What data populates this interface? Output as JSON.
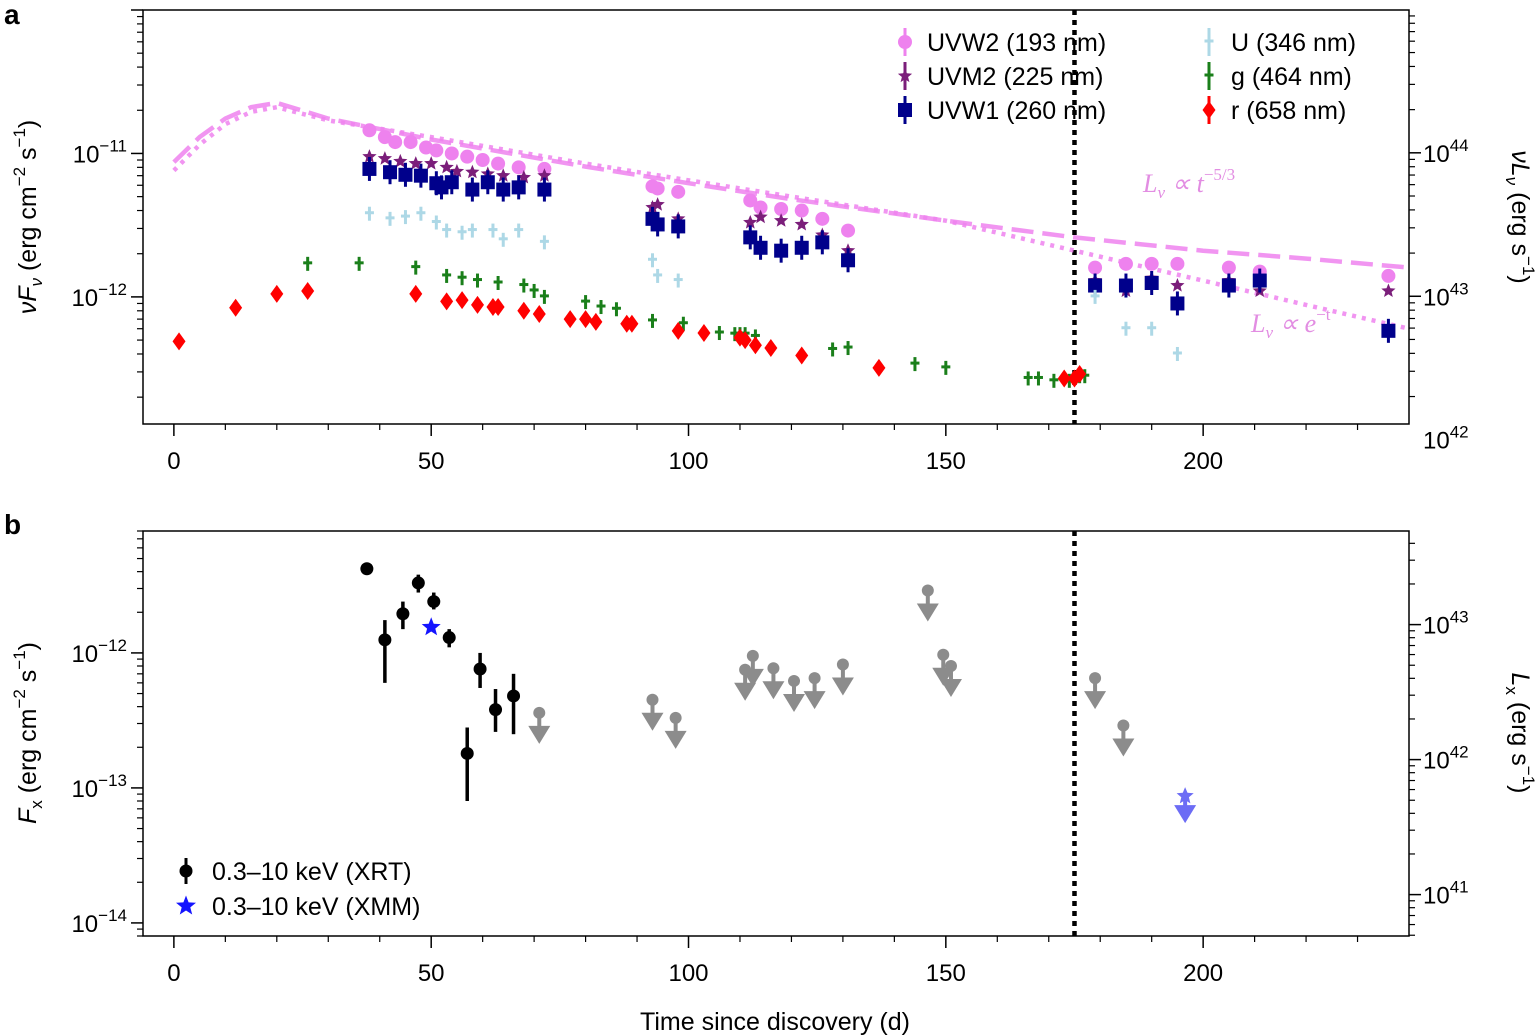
{
  "chart_data": [
    {
      "panel": "a",
      "type": "scatter",
      "xlim": [
        -6,
        240
      ],
      "ylim_left": [
        1.3e-13,
        1e-10
      ],
      "left_axis_label": "νF_ν (erg cm^−2 s^−1)",
      "right_axis_label": "νL_ν (erg s^−1)",
      "left_yticks": [
        {
          "value": 1e-11,
          "base": "10",
          "exp": "−11"
        },
        {
          "value": 1e-12,
          "base": "10",
          "exp": "−12"
        }
      ],
      "right_yticks": [
        {
          "value": 1e+44,
          "base": "10",
          "exp": "44"
        },
        {
          "value": 1e+43,
          "base": "10",
          "exp": "43"
        },
        {
          "value": 1e+42,
          "base": "10",
          "exp": "42"
        }
      ],
      "right_axis_scale_factor": 9.9e+54,
      "xticks": [
        0,
        50,
        100,
        150,
        200
      ],
      "discovery_line_x": 175,
      "series": [
        {
          "name": "UVW2 (193 nm)",
          "color": "#ee82ee",
          "marker": "circle",
          "x": [
            38,
            41,
            43,
            46,
            49,
            51,
            54,
            57,
            60,
            63,
            67,
            72,
            93,
            94,
            98,
            112,
            114,
            118,
            122,
            126,
            131,
            179,
            185,
            190,
            195,
            205,
            211,
            236
          ],
          "y": [
            1.45e-11,
            1.3e-11,
            1.2e-11,
            1.2e-11,
            1.1e-11,
            1.05e-11,
            1e-11,
            9.5e-12,
            9e-12,
            8.5e-12,
            8e-12,
            7.8e-12,
            5.9e-12,
            5.7e-12,
            5.4e-12,
            4.7e-12,
            4.2e-12,
            4.1e-12,
            4e-12,
            3.5e-12,
            2.9e-12,
            1.6e-12,
            1.7e-12,
            1.7e-12,
            1.7e-12,
            1.6e-12,
            1.5e-12,
            1.4e-12
          ]
        },
        {
          "name": "UVM2 (225 nm)",
          "color": "#7b1e7a",
          "marker": "star",
          "x": [
            38,
            41,
            44,
            47,
            50,
            53,
            55,
            58,
            61,
            64,
            68,
            72,
            93,
            94,
            98,
            112,
            114,
            118,
            122,
            126,
            131,
            179,
            185,
            190,
            195,
            205,
            211,
            236
          ],
          "y": [
            9.5e-12,
            9.2e-12,
            8.8e-12,
            8.5e-12,
            8.5e-12,
            8e-12,
            7.5e-12,
            7.4e-12,
            7.2e-12,
            7e-12,
            6.8e-12,
            7e-12,
            4.2e-12,
            4.4e-12,
            3.5e-12,
            3.3e-12,
            3.6e-12,
            3.4e-12,
            3.2e-12,
            2.7e-12,
            2.1e-12,
            1.3e-12,
            1.1e-12,
            1.35e-12,
            1.2e-12,
            1.3e-12,
            1.1e-12,
            1.1e-12
          ]
        },
        {
          "name": "UVW1 (260 nm)",
          "color": "#00008b",
          "marker": "square",
          "x": [
            38,
            42,
            45,
            48,
            51,
            52,
            54,
            58,
            61,
            64,
            67,
            72,
            93,
            94,
            98,
            112,
            114,
            118,
            122,
            126,
            131,
            179,
            185,
            190,
            195,
            205,
            211,
            236
          ],
          "y": [
            7.8e-12,
            7.4e-12,
            7.1e-12,
            7e-12,
            6.2e-12,
            5.8e-12,
            6.3e-12,
            5.6e-12,
            6.3e-12,
            5.6e-12,
            5.8e-12,
            5.6e-12,
            3.5e-12,
            3.2e-12,
            3.1e-12,
            2.6e-12,
            2.2e-12,
            2.1e-12,
            2.2e-12,
            2.4e-12,
            1.8e-12,
            1.2e-12,
            1.2e-12,
            1.25e-12,
            9e-13,
            1.2e-12,
            1.3e-12,
            5.8e-13
          ]
        },
        {
          "name": "U (346 nm)",
          "color": "#add8e6",
          "marker": "tick",
          "x": [
            38,
            42,
            45,
            48,
            51,
            53,
            56,
            58,
            62,
            64,
            67,
            72,
            93,
            94,
            98,
            179,
            185,
            190,
            195
          ],
          "y": [
            3.8e-12,
            3.5e-12,
            3.6e-12,
            3.8e-12,
            3.3e-12,
            2.9e-12,
            2.8e-12,
            2.9e-12,
            2.9e-12,
            2.5e-12,
            2.9e-12,
            2.4e-12,
            1.8e-12,
            1.4e-12,
            1.3e-12,
            1e-12,
            6e-13,
            6e-13,
            4e-13
          ]
        },
        {
          "name": "g (464 nm)",
          "color": "#1a7f1a",
          "marker": "tick",
          "x": [
            26,
            36,
            47,
            53,
            56,
            59,
            63,
            68,
            70,
            72,
            80,
            83,
            86,
            93,
            99,
            106,
            109,
            110,
            111,
            113,
            128,
            131,
            144,
            150,
            166,
            168,
            171,
            174,
            175,
            176,
            177
          ],
          "y": [
            1.7e-12,
            1.7e-12,
            1.6e-12,
            1.4e-12,
            1.35e-12,
            1.3e-12,
            1.25e-12,
            1.2e-12,
            1.1e-12,
            1e-12,
            9.2e-13,
            8.5e-13,
            8.2e-13,
            6.8e-13,
            6.5e-13,
            5.6e-13,
            5.5e-13,
            5.5e-13,
            5.5e-13,
            5.3e-13,
            4.3e-13,
            4.4e-13,
            3.4e-13,
            3.2e-13,
            2.7e-13,
            2.7e-13,
            2.6e-13,
            2.6e-13,
            2.7e-13,
            2.8e-13,
            2.8e-13
          ]
        },
        {
          "name": "r (658 nm)",
          "color": "#ff0000",
          "marker": "diamond",
          "x": [
            1,
            12,
            20,
            26,
            47,
            53,
            56,
            59,
            62,
            63,
            68,
            71,
            77,
            80,
            82,
            88,
            89,
            98,
            103,
            110,
            111,
            113,
            116,
            122,
            137,
            173,
            175,
            176
          ],
          "y": [
            4.9e-13,
            8.4e-13,
            1.05e-12,
            1.1e-12,
            1.05e-12,
            9.3e-13,
            9.5e-13,
            8.8e-13,
            8.5e-13,
            8.5e-13,
            8e-13,
            7.6e-13,
            7e-13,
            7e-13,
            6.7e-13,
            6.5e-13,
            6.5e-13,
            5.8e-13,
            5.6e-13,
            5.2e-13,
            5e-13,
            4.6e-13,
            4.4e-13,
            3.9e-13,
            3.2e-13,
            2.7e-13,
            2.7e-13,
            2.9e-13
          ]
        }
      ],
      "model_curves": [
        {
          "label_prefix": "L",
          "label_sub": "ν",
          "label_rel": " ∝ t",
          "label_sup": "−5/3",
          "style": "dashed",
          "color": "#ee82ee",
          "x": [
            0,
            5,
            10,
            15,
            20,
            30,
            50,
            80,
            100,
            120,
            150,
            175,
            200,
            220,
            240
          ],
          "y": [
            8.7e-12,
            1.3e-11,
            1.75e-11,
            2.1e-11,
            2.25e-11,
            1.75e-11,
            1.25e-11,
            8.1e-12,
            6.2e-12,
            4.8e-12,
            3.4e-12,
            2.6e-12,
            2.1e-12,
            1.85e-12,
            1.6e-12
          ]
        },
        {
          "label_prefix": "L",
          "label_sub": "ν",
          "label_rel": " ∝ e",
          "label_sup": "−t",
          "style": "dotted",
          "color": "#ee82ee",
          "x": [
            0,
            5,
            10,
            15,
            20,
            30,
            50,
            80,
            100,
            120,
            150,
            175,
            200,
            220,
            240
          ],
          "y": [
            7.6e-12,
            1.15e-11,
            1.6e-11,
            1.95e-11,
            2.1e-11,
            1.7e-11,
            1.3e-11,
            8.5e-12,
            6.5e-12,
            5e-12,
            3.4e-12,
            2.1e-12,
            1.3e-12,
            8.8e-13,
            6e-13
          ]
        }
      ]
    },
    {
      "panel": "b",
      "type": "scatter",
      "xlim": [
        -6,
        240
      ],
      "ylim_left": [
        8e-15,
        8e-12
      ],
      "left_axis_label": "F_x (erg cm^−2 s^−1)",
      "right_axis_label": "L_x (erg s^−1)",
      "xlabel": "Time since discovery (d)",
      "left_yticks": [
        {
          "value": 1e-12,
          "base": "10",
          "exp": "−12"
        },
        {
          "value": 1e-13,
          "base": "10",
          "exp": "−13"
        },
        {
          "value": 1e-14,
          "base": "10",
          "exp": "−14"
        }
      ],
      "right_yticks": [
        {
          "value": 1e+43,
          "base": "10",
          "exp": "43"
        },
        {
          "value": 1e+42,
          "base": "10",
          "exp": "42"
        },
        {
          "value": 1e+41,
          "base": "10",
          "exp": "41"
        }
      ],
      "right_axis_scale_factor": 6.17e+54,
      "xticks": [
        0,
        50,
        100,
        150,
        200
      ],
      "discovery_line_x": 175,
      "series": [
        {
          "name": "0.3–10 keV (XRT)",
          "color": "#000000",
          "marker": "circle",
          "x": [
            37.5,
            41,
            44.5,
            47.5,
            50.5,
            53.5,
            57,
            59.5,
            62.5,
            66
          ],
          "y": [
            4.2e-12,
            1.25e-12,
            1.95e-12,
            3.3e-12,
            2.4e-12,
            1.3e-12,
            1.8e-13,
            7.6e-13,
            3.8e-13,
            4.8e-13
          ],
          "err_lo": [
            4.2e-12,
            6e-13,
            1.5e-12,
            2.8e-12,
            2.1e-12,
            1.1e-12,
            8e-14,
            5.5e-13,
            2.6e-13,
            2.5e-13
          ],
          "err_hi": [
            4.2e-12,
            1.75e-12,
            2.4e-12,
            3.8e-12,
            2.8e-12,
            1.5e-12,
            2.8e-13,
            1e-12,
            5.4e-13,
            7e-13
          ]
        },
        {
          "name": "0.3–10 keV (XMM)",
          "color": "#1414ff",
          "marker": "star",
          "x": [
            50
          ],
          "y": [
            1.55e-12
          ]
        }
      ],
      "upper_limits": {
        "color": "#8c8c8c",
        "x": [
          71,
          93,
          97.5,
          111,
          112.5,
          116.5,
          120.5,
          124.5,
          130,
          146.5,
          149.5,
          151,
          179,
          184.5
        ],
        "y": [
          3.6e-13,
          4.5e-13,
          3.3e-13,
          7.5e-13,
          9.5e-13,
          7.7e-13,
          6.2e-13,
          6.5e-13,
          8.2e-13,
          2.9e-12,
          9.7e-13,
          8e-13,
          6.5e-13,
          2.9e-13
        ]
      },
      "xmm_upper_limit": {
        "color": "#6c6cf5",
        "x": 196.5,
        "y": 8.7e-14
      }
    }
  ]
}
